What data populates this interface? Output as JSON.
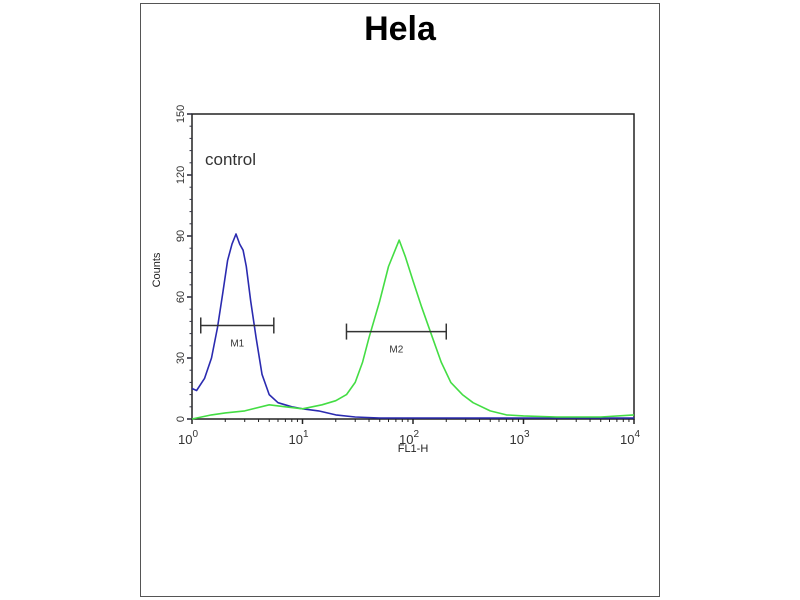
{
  "chart_data": {
    "type": "line",
    "title": "Hela",
    "xlabel": "FL1-H",
    "ylabel": "Counts",
    "x_scale": "log",
    "xlim": [
      1,
      10000
    ],
    "ylim": [
      0,
      150
    ],
    "x_ticks": [
      {
        "base": "10",
        "exp": "0"
      },
      {
        "base": "10",
        "exp": "1"
      },
      {
        "base": "10",
        "exp": "2"
      },
      {
        "base": "10",
        "exp": "3"
      },
      {
        "base": "10",
        "exp": "4"
      }
    ],
    "y_ticks": [
      "0",
      "30",
      "60",
      "90",
      "120",
      "150"
    ],
    "y_tick_values": [
      0,
      30,
      60,
      90,
      120,
      150
    ],
    "annotation": "control",
    "grid": false,
    "series": [
      {
        "color": "#2b2bb0",
        "points": [
          [
            1,
            15
          ],
          [
            1.1,
            14
          ],
          [
            1.3,
            20
          ],
          [
            1.5,
            30
          ],
          [
            1.7,
            45
          ],
          [
            1.9,
            62
          ],
          [
            2.1,
            78
          ],
          [
            2.3,
            86
          ],
          [
            2.5,
            91
          ],
          [
            2.7,
            86
          ],
          [
            2.9,
            83
          ],
          [
            3.1,
            75
          ],
          [
            3.4,
            58
          ],
          [
            3.8,
            40
          ],
          [
            4.3,
            22
          ],
          [
            5,
            12
          ],
          [
            6,
            8
          ],
          [
            8,
            6
          ],
          [
            10,
            5
          ],
          [
            14,
            4
          ],
          [
            20,
            2
          ],
          [
            30,
            1
          ],
          [
            50,
            0.5
          ],
          [
            100,
            0.5
          ],
          [
            300,
            0.5
          ],
          [
            1000,
            0.5
          ],
          [
            10000,
            0.5
          ]
        ]
      },
      {
        "color": "#44dd44",
        "points": [
          [
            1,
            0
          ],
          [
            1.5,
            2
          ],
          [
            2,
            3
          ],
          [
            3,
            4
          ],
          [
            5,
            7
          ],
          [
            7,
            6
          ],
          [
            10,
            5
          ],
          [
            15,
            7
          ],
          [
            20,
            9
          ],
          [
            25,
            12
          ],
          [
            30,
            18
          ],
          [
            35,
            28
          ],
          [
            40,
            40
          ],
          [
            50,
            58
          ],
          [
            60,
            75
          ],
          [
            70,
            84
          ],
          [
            75,
            88
          ],
          [
            85,
            80
          ],
          [
            100,
            68
          ],
          [
            120,
            55
          ],
          [
            150,
            40
          ],
          [
            180,
            28
          ],
          [
            220,
            18
          ],
          [
            280,
            12
          ],
          [
            350,
            8
          ],
          [
            500,
            4
          ],
          [
            700,
            2
          ],
          [
            1000,
            1.5
          ],
          [
            2000,
            1
          ],
          [
            5000,
            1
          ],
          [
            10000,
            2
          ]
        ]
      }
    ],
    "markers": [
      {
        "label": "M1",
        "x_range": [
          1.2,
          5.5
        ],
        "y": 46
      },
      {
        "label": "M2",
        "x_range": [
          25,
          200
        ],
        "y": 43
      }
    ]
  }
}
